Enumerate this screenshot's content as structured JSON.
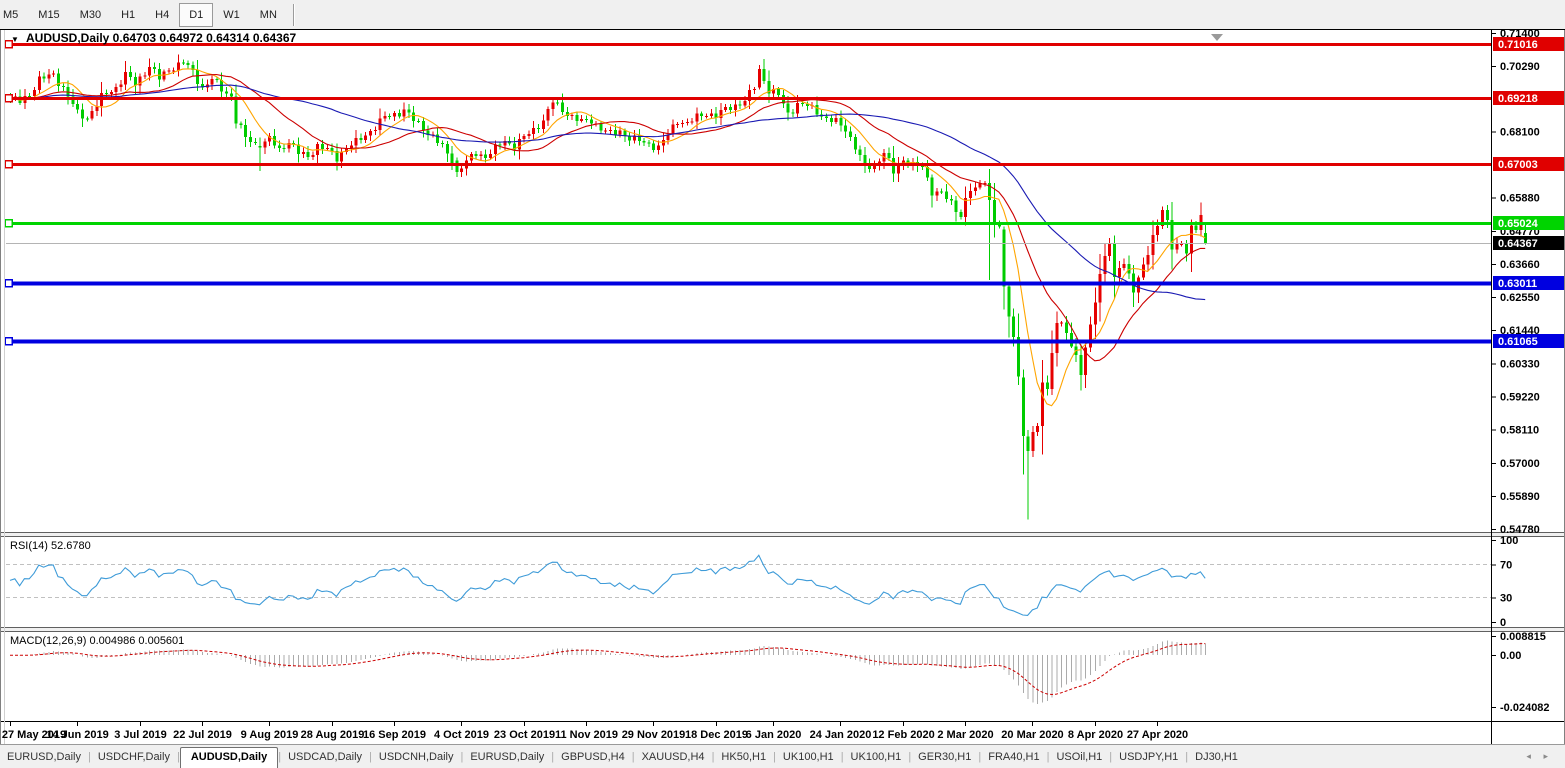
{
  "window": {
    "background": "#F0F0F0"
  },
  "toolbar": {
    "timeframes": [
      "M5",
      "M15",
      "M30",
      "H1",
      "H4",
      "D1",
      "W1",
      "MN"
    ],
    "active_timeframe": "D1"
  },
  "chart_header": {
    "dropdown_icon": "▼",
    "symbol_title": "AUDUSD,Daily",
    "ohlc": "0.64703 0.64972 0.64314 0.64367"
  },
  "indicator_headers": {
    "rsi": "RSI(14) 52.6780",
    "macd": "MACD(12,26,9) 0.004986 0.005601"
  },
  "tabs": {
    "items": [
      "EURUSD,Daily",
      "USDCHF,Daily",
      "AUDUSD,Daily",
      "USDCAD,Daily",
      "USDCNH,Daily",
      "EURUSD,Daily",
      "GBPUSD,H4",
      "XAUUSD,H4",
      "HK50,H1",
      "UK100,H1",
      "UK100,H1",
      "GER30,H1",
      "FRA40,H1",
      "USOil,H1",
      "USDJPY,H1",
      "DJ30,H1"
    ],
    "active_index": 2,
    "scroll_left": "◂",
    "scroll_right": "▸"
  },
  "chart_data": {
    "type": "candlestick",
    "symbol": "AUDUSD",
    "timeframe": "Daily",
    "open": "0.64703",
    "high": "0.64972",
    "low": "0.64314",
    "close": "0.64367",
    "colors": {
      "bull": "#E60000",
      "bear": "#00CC00",
      "ma_fast": "#FFA500",
      "ma_mid": "#CC0000",
      "ma_slow": "#1A1AB3",
      "rsi": "#3E9BD8",
      "rsi_guide": "#C0C0C0",
      "macd_hist": "#ABABAB",
      "macd_signal": "#CC0000",
      "current_line": "#B4B4B4",
      "current_badge": "#000000"
    },
    "price_axis": {
      "ticks": [
        {
          "p": 0.714,
          "label": "0.71400"
        },
        {
          "p": 0.7029,
          "label": "0.70290"
        },
        {
          "p": 0.681,
          "label": "0.68100"
        },
        {
          "p": 0.6588,
          "label": "0.65880"
        },
        {
          "p": 0.6477,
          "label": "0.64770"
        },
        {
          "p": 0.6366,
          "label": "0.63660"
        },
        {
          "p": 0.6255,
          "label": "0.62550"
        },
        {
          "p": 0.6144,
          "label": "0.61440"
        },
        {
          "p": 0.6033,
          "label": "0.60330"
        },
        {
          "p": 0.5922,
          "label": "0.59220"
        },
        {
          "p": 0.5811,
          "label": "0.58110"
        },
        {
          "p": 0.57,
          "label": "0.57000"
        },
        {
          "p": 0.5589,
          "label": "0.55890"
        },
        {
          "p": 0.5478,
          "label": "0.54780"
        }
      ]
    },
    "levels": [
      {
        "price": 0.71016,
        "label": "0.71016",
        "color": "#E00000",
        "width": 3
      },
      {
        "price": 0.69218,
        "label": "0.69218",
        "color": "#E00000",
        "width": 3
      },
      {
        "price": 0.67003,
        "label": "0.67003",
        "color": "#E00000",
        "width": 3
      },
      {
        "price": 0.65024,
        "label": "0.65024",
        "color": "#00D400",
        "width": 3
      },
      {
        "price": 0.63011,
        "label": "0.63011",
        "color": "#0000E0",
        "width": 4
      },
      {
        "price": 0.61065,
        "label": "0.61065",
        "color": "#0000E0",
        "width": 4
      }
    ],
    "current_price": {
      "price": 0.64367,
      "label": "0.64367"
    },
    "date_labels": [
      {
        "i": 0,
        "label": "27 May 2019"
      },
      {
        "i": 14,
        "label": "14 Jun 2019"
      },
      {
        "i": 27,
        "label": "3 Jul 2019"
      },
      {
        "i": 40,
        "label": "22 Jul 2019"
      },
      {
        "i": 54,
        "label": "9 Aug 2019"
      },
      {
        "i": 67,
        "label": "28 Aug 2019"
      },
      {
        "i": 80,
        "label": "16 Sep 2019"
      },
      {
        "i": 94,
        "label": "4 Oct 2019"
      },
      {
        "i": 107,
        "label": "23 Oct 2019"
      },
      {
        "i": 120,
        "label": "11 Nov 2019"
      },
      {
        "i": 134,
        "label": "29 Nov 2019"
      },
      {
        "i": 147,
        "label": "18 Dec 2019"
      },
      {
        "i": 159,
        "label": "6 Jan 2020"
      },
      {
        "i": 173,
        "label": "24 Jan 2020"
      },
      {
        "i": 186,
        "label": "12 Feb 2020"
      },
      {
        "i": 199,
        "label": "2 Mar 2020"
      },
      {
        "i": 213,
        "label": "20 Mar 2020"
      },
      {
        "i": 226,
        "label": "8 Apr 2020"
      },
      {
        "i": 239,
        "label": "27 Apr 2020"
      }
    ],
    "candles_n": 250,
    "key_points": [
      [
        0,
        0.6923
      ],
      [
        2,
        0.691
      ],
      [
        4,
        0.6935
      ],
      [
        6,
        0.6985
      ],
      [
        9,
        0.7
      ],
      [
        11,
        0.6955
      ],
      [
        14,
        0.6872
      ],
      [
        16,
        0.6856
      ],
      [
        19,
        0.6925
      ],
      [
        22,
        0.6958
      ],
      [
        24,
        0.7002
      ],
      [
        26,
        0.6968
      ],
      [
        29,
        0.703
      ],
      [
        31,
        0.6988
      ],
      [
        33,
        0.7018
      ],
      [
        36,
        0.7042
      ],
      [
        38,
        0.701
      ],
      [
        40,
        0.6956
      ],
      [
        42,
        0.6985
      ],
      [
        44,
        0.6952
      ],
      [
        46,
        0.6928
      ],
      [
        47,
        0.6845
      ],
      [
        49,
        0.679
      ],
      [
        52,
        0.6757
      ],
      [
        54,
        0.6786
      ],
      [
        56,
        0.6748
      ],
      [
        58,
        0.6778
      ],
      [
        60,
        0.6738
      ],
      [
        62,
        0.6726
      ],
      [
        64,
        0.6762
      ],
      [
        66,
        0.6748
      ],
      [
        68,
        0.6722
      ],
      [
        70,
        0.6758
      ],
      [
        72,
        0.6774
      ],
      [
        74,
        0.6798
      ],
      [
        76,
        0.6826
      ],
      [
        78,
        0.6858
      ],
      [
        80,
        0.6868
      ],
      [
        82,
        0.6882
      ],
      [
        84,
        0.6848
      ],
      [
        86,
        0.6822
      ],
      [
        88,
        0.6792
      ],
      [
        90,
        0.6758
      ],
      [
        92,
        0.6712
      ],
      [
        93,
        0.6675
      ],
      [
        95,
        0.6708
      ],
      [
        97,
        0.6738
      ],
      [
        99,
        0.6726
      ],
      [
        101,
        0.6752
      ],
      [
        103,
        0.6778
      ],
      [
        105,
        0.6762
      ],
      [
        107,
        0.679
      ],
      [
        109,
        0.6816
      ],
      [
        111,
        0.6848
      ],
      [
        113,
        0.691
      ],
      [
        115,
        0.6882
      ],
      [
        117,
        0.686
      ],
      [
        119,
        0.6842
      ],
      [
        121,
        0.6848
      ],
      [
        123,
        0.682
      ],
      [
        125,
        0.6802
      ],
      [
        127,
        0.6812
      ],
      [
        129,
        0.6788
      ],
      [
        131,
        0.6778
      ],
      [
        133,
        0.6768
      ],
      [
        135,
        0.6756
      ],
      [
        137,
        0.68
      ],
      [
        139,
        0.6848
      ],
      [
        141,
        0.6836
      ],
      [
        143,
        0.6858
      ],
      [
        145,
        0.6872
      ],
      [
        147,
        0.6862
      ],
      [
        149,
        0.6885
      ],
      [
        151,
        0.6898
      ],
      [
        153,
        0.6912
      ],
      [
        155,
        0.6958
      ],
      [
        156,
        0.702
      ],
      [
        158,
        0.6948
      ],
      [
        160,
        0.6932
      ],
      [
        162,
        0.687
      ],
      [
        164,
        0.6902
      ],
      [
        166,
        0.6896
      ],
      [
        168,
        0.6878
      ],
      [
        170,
        0.6852
      ],
      [
        172,
        0.6842
      ],
      [
        174,
        0.682
      ],
      [
        176,
        0.6758
      ],
      [
        178,
        0.669
      ],
      [
        180,
        0.6694
      ],
      [
        182,
        0.6742
      ],
      [
        184,
        0.6672
      ],
      [
        186,
        0.6716
      ],
      [
        188,
        0.6698
      ],
      [
        190,
        0.6688
      ],
      [
        192,
        0.661
      ],
      [
        194,
        0.6606
      ],
      [
        196,
        0.6565
      ],
      [
        198,
        0.653
      ],
      [
        199,
        0.659
      ],
      [
        201,
        0.6626
      ],
      [
        203,
        0.664
      ],
      [
        204,
        0.658
      ],
      [
        205,
        0.65
      ],
      [
        206,
        0.649
      ],
      [
        207,
        0.629
      ],
      [
        208,
        0.619
      ],
      [
        209,
        0.612
      ],
      [
        210,
        0.599
      ],
      [
        211,
        0.579
      ],
      [
        212,
        0.574
      ],
      [
        213,
        0.58
      ],
      [
        214,
        0.5826
      ],
      [
        215,
        0.5966
      ],
      [
        216,
        0.595
      ],
      [
        217,
        0.6065
      ],
      [
        218,
        0.617
      ],
      [
        219,
        0.6168
      ],
      [
        220,
        0.6135
      ],
      [
        221,
        0.609
      ],
      [
        222,
        0.606
      ],
      [
        223,
        0.5995
      ],
      [
        224,
        0.6085
      ],
      [
        225,
        0.6165
      ],
      [
        226,
        0.6235
      ],
      [
        227,
        0.6335
      ],
      [
        228,
        0.639
      ],
      [
        229,
        0.644
      ],
      [
        230,
        0.632
      ],
      [
        231,
        0.6355
      ],
      [
        232,
        0.6365
      ],
      [
        233,
        0.6335
      ],
      [
        234,
        0.627
      ],
      [
        235,
        0.632
      ],
      [
        236,
        0.6365
      ],
      [
        237,
        0.6395
      ],
      [
        238,
        0.6465
      ],
      [
        239,
        0.649
      ],
      [
        240,
        0.655
      ],
      [
        241,
        0.651
      ],
      [
        242,
        0.6418
      ],
      [
        243,
        0.643
      ],
      [
        244,
        0.6435
      ],
      [
        245,
        0.64
      ],
      [
        246,
        0.6495
      ],
      [
        247,
        0.648
      ],
      [
        248,
        0.653
      ],
      [
        249,
        0.6437
      ]
    ],
    "overrides": {
      "52": [
        0.6762,
        0.679,
        0.6677,
        0.6757
      ],
      "93": [
        0.6712,
        0.6723,
        0.6658,
        0.6675
      ],
      "156": [
        0.6958,
        0.7033,
        0.695,
        0.702
      ],
      "204": [
        0.6638,
        0.6685,
        0.6313,
        0.658
      ],
      "207": [
        0.6482,
        0.6492,
        0.6213,
        0.629
      ],
      "211": [
        0.5985,
        0.6012,
        0.566,
        0.579
      ],
      "212": [
        0.5788,
        0.581,
        0.551,
        0.574
      ],
      "249": [
        0.64703,
        0.64972,
        0.64314,
        0.64367
      ]
    },
    "moving_averages": [
      {
        "period": 8,
        "color_key": "ma_fast"
      },
      {
        "period": 20,
        "color_key": "ma_mid"
      },
      {
        "period": 44,
        "color_key": "ma_slow"
      }
    ],
    "rsi": {
      "period": 14,
      "value": 52.678,
      "axis": [
        {
          "v": 100,
          "label": "100"
        },
        {
          "v": 70,
          "label": "70"
        },
        {
          "v": 30,
          "label": "30"
        },
        {
          "v": 0,
          "label": "0"
        }
      ],
      "guides": [
        70,
        30
      ]
    },
    "macd": {
      "fast": 12,
      "slow": 26,
      "signal": 9,
      "value": 0.004986,
      "signal_value": 0.005601,
      "axis": [
        {
          "v": 0.008815,
          "label": "0.008815"
        },
        {
          "v": 0,
          "label": "0.00"
        },
        {
          "v": -0.024082,
          "label": "-0.024082"
        }
      ]
    }
  }
}
